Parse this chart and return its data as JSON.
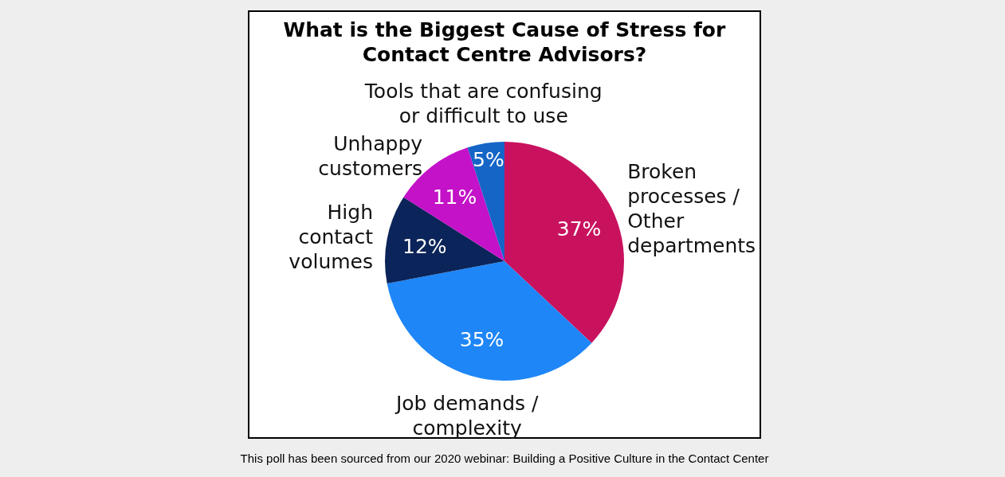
{
  "chart_data": {
    "type": "pie",
    "title": "What is the Biggest Cause of Stress for\nContact Centre Advisors?",
    "categories": [
      "Broken\nprocesses /\nOther\ndepartments",
      "Job demands /\ncomplexity",
      "High\ncontact\nvolumes",
      "Unhappy\ncustomers",
      "Tools that are confusing\nor difficult to use"
    ],
    "values": [
      37,
      35,
      12,
      11,
      5
    ],
    "value_labels": [
      "37%",
      "35%",
      "12%",
      "11%",
      "5%"
    ],
    "colors": [
      "#c8125e",
      "#1e86f7",
      "#0b2459",
      "#c412c8",
      "#1565c7"
    ],
    "annotations": [
      "This poll has been sourced from our 2020 webinar: Building a Positive Culture in the Contact Center"
    ]
  }
}
